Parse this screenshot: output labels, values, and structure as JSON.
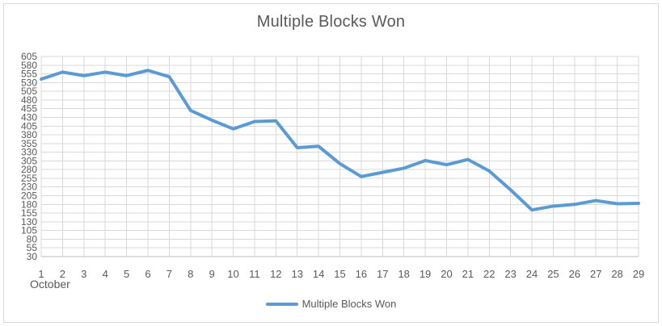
{
  "chart_data": {
    "type": "line",
    "title": "Multiple Blocks Won",
    "x_axis_group_label": "October",
    "categories": [
      "1",
      "2",
      "3",
      "4",
      "5",
      "6",
      "7",
      "8",
      "9",
      "10",
      "11",
      "12",
      "13",
      "14",
      "15",
      "16",
      "17",
      "18",
      "19",
      "20",
      "21",
      "22",
      "23",
      "24",
      "25",
      "26",
      "27",
      "28",
      "29"
    ],
    "series": [
      {
        "name": "Multiple Blocks Won",
        "values": [
          540,
          560,
          550,
          560,
          550,
          565,
          547,
          450,
          422,
          397,
          418,
          420,
          343,
          347,
          297,
          260,
          272,
          284,
          306,
          294,
          309,
          276,
          222,
          164,
          175,
          180,
          191,
          182,
          183
        ]
      }
    ],
    "y_ticks": [
      605,
      580,
      555,
      530,
      505,
      480,
      455,
      430,
      405,
      380,
      355,
      330,
      305,
      280,
      255,
      230,
      205,
      180,
      155,
      130,
      105,
      80,
      55,
      30
    ],
    "ylim": [
      30,
      605
    ],
    "y_tick_step": 25,
    "grid": true,
    "legend_position": "bottom",
    "colors": {
      "line": "#5B9BD5",
      "grid": "#D9D9D9",
      "axis": "#BFBFBF",
      "tick_text": "#595959",
      "title_text": "#595959",
      "border": "#D9D9D9"
    }
  }
}
